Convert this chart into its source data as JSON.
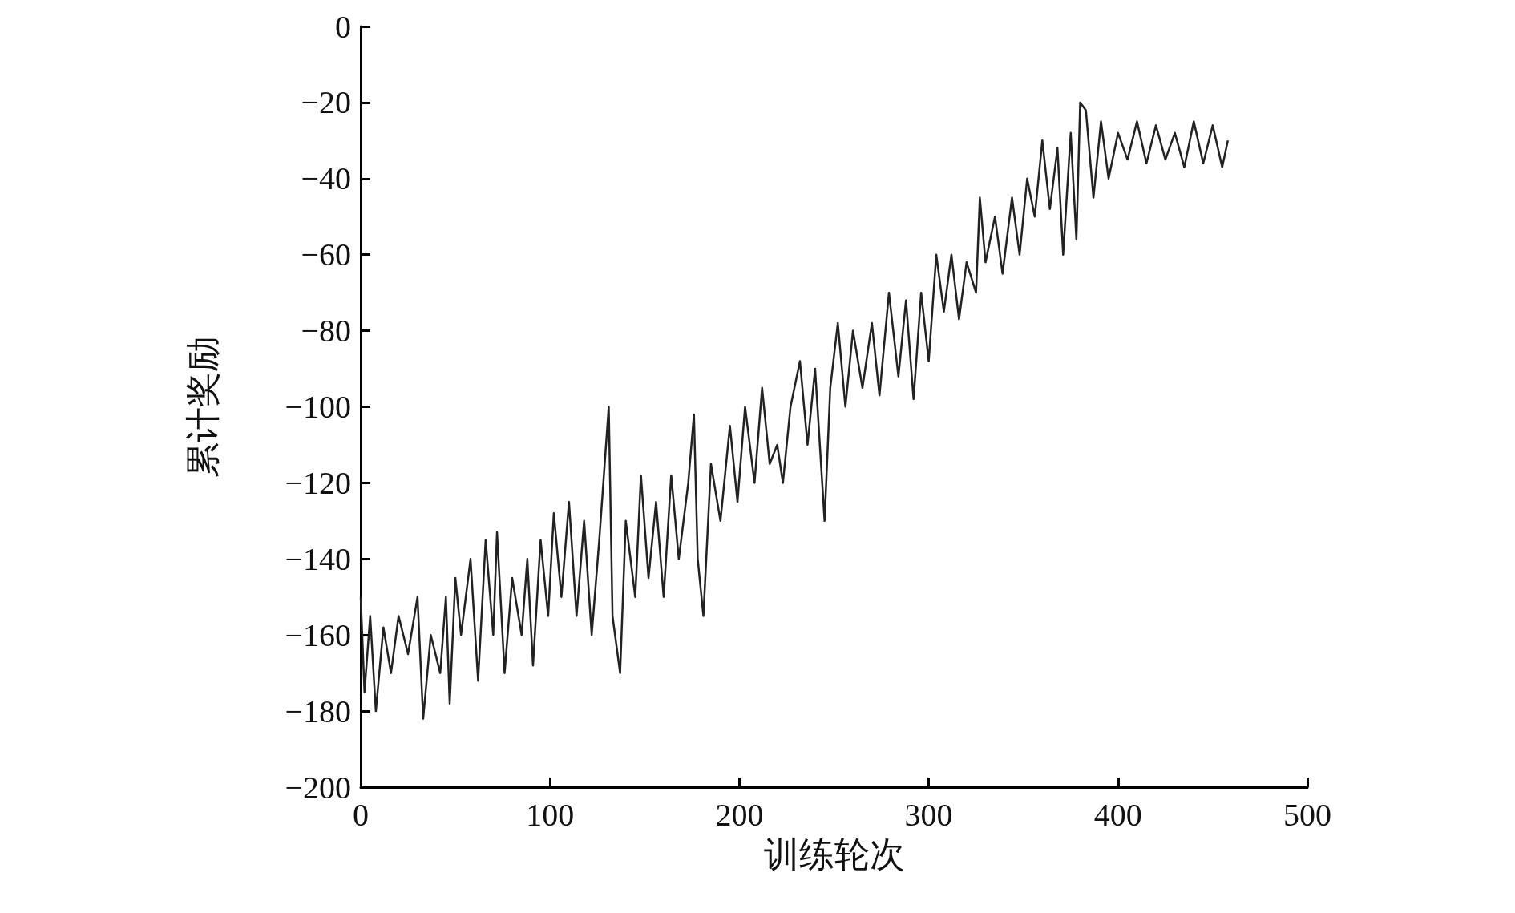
{
  "chart_data": {
    "type": "line",
    "xlabel": "训练轮次",
    "ylabel": "累计奖励",
    "xlim": [
      0,
      500
    ],
    "xticks": [
      0,
      100,
      200,
      300,
      400,
      500
    ],
    "ylim": [
      -200,
      0
    ],
    "yticks": [
      {
        "value": -200,
        "label": "−200"
      },
      {
        "value": -180,
        "label": "−180"
      },
      {
        "value": -160,
        "label": "−160"
      },
      {
        "value": -140,
        "label": "−140"
      },
      {
        "value": -120,
        "label": "−120"
      },
      {
        "value": -100,
        "label": "−100"
      },
      {
        "value": -80,
        "label": "−80"
      },
      {
        "value": -60,
        "label": "−60"
      },
      {
        "value": -40,
        "label": "−40"
      },
      {
        "value": -20,
        "label": "−20"
      },
      0
    ],
    "grid": false,
    "marker": "none",
    "line_style": "solid",
    "series": [
      {
        "color": "#222222",
        "x": [
          0,
          2,
          5,
          8,
          12,
          16,
          20,
          25,
          30,
          33,
          37,
          42,
          45,
          47,
          50,
          53,
          58,
          62,
          66,
          70,
          72,
          76,
          80,
          85,
          88,
          91,
          95,
          99,
          102,
          106,
          110,
          114,
          118,
          122,
          126,
          131,
          133,
          137,
          140,
          145,
          148,
          152,
          156,
          160,
          164,
          168,
          173,
          176,
          178,
          181,
          185,
          190,
          195,
          199,
          203,
          208,
          212,
          216,
          220,
          223,
          227,
          232,
          236,
          240,
          245,
          248,
          252,
          256,
          260,
          265,
          270,
          274,
          279,
          284,
          288,
          292,
          296,
          300,
          304,
          308,
          312,
          316,
          320,
          325,
          327,
          330,
          335,
          339,
          344,
          348,
          352,
          356,
          360,
          364,
          368,
          371,
          375,
          378,
          380,
          383,
          387,
          391,
          395,
          400,
          405,
          410,
          415,
          420,
          425,
          430,
          435,
          440,
          445,
          450,
          455,
          458
        ],
        "values": [
          -150,
          -175,
          -155,
          -180,
          -158,
          -170,
          -155,
          -165,
          -150,
          -182,
          -160,
          -170,
          -150,
          -178,
          -145,
          -160,
          -140,
          -172,
          -135,
          -160,
          -133,
          -170,
          -145,
          -160,
          -140,
          -168,
          -135,
          -155,
          -128,
          -150,
          -125,
          -155,
          -130,
          -160,
          -135,
          -100,
          -155,
          -170,
          -130,
          -150,
          -118,
          -145,
          -125,
          -150,
          -118,
          -140,
          -120,
          -102,
          -140,
          -155,
          -115,
          -130,
          -105,
          -125,
          -100,
          -120,
          -95,
          -115,
          -110,
          -120,
          -100,
          -88,
          -110,
          -90,
          -130,
          -95,
          -78,
          -100,
          -80,
          -95,
          -78,
          -97,
          -70,
          -92,
          -72,
          -98,
          -70,
          -88,
          -60,
          -75,
          -60,
          -77,
          -62,
          -70,
          -45,
          -62,
          -50,
          -65,
          -45,
          -60,
          -40,
          -50,
          -30,
          -48,
          -32,
          -60,
          -28,
          -56,
          -20,
          -22,
          -45,
          -25,
          -40,
          -28,
          -35,
          -25,
          -36,
          -26,
          -35,
          -28,
          -37,
          -25,
          -36,
          -26,
          -37,
          -30
        ]
      }
    ]
  }
}
